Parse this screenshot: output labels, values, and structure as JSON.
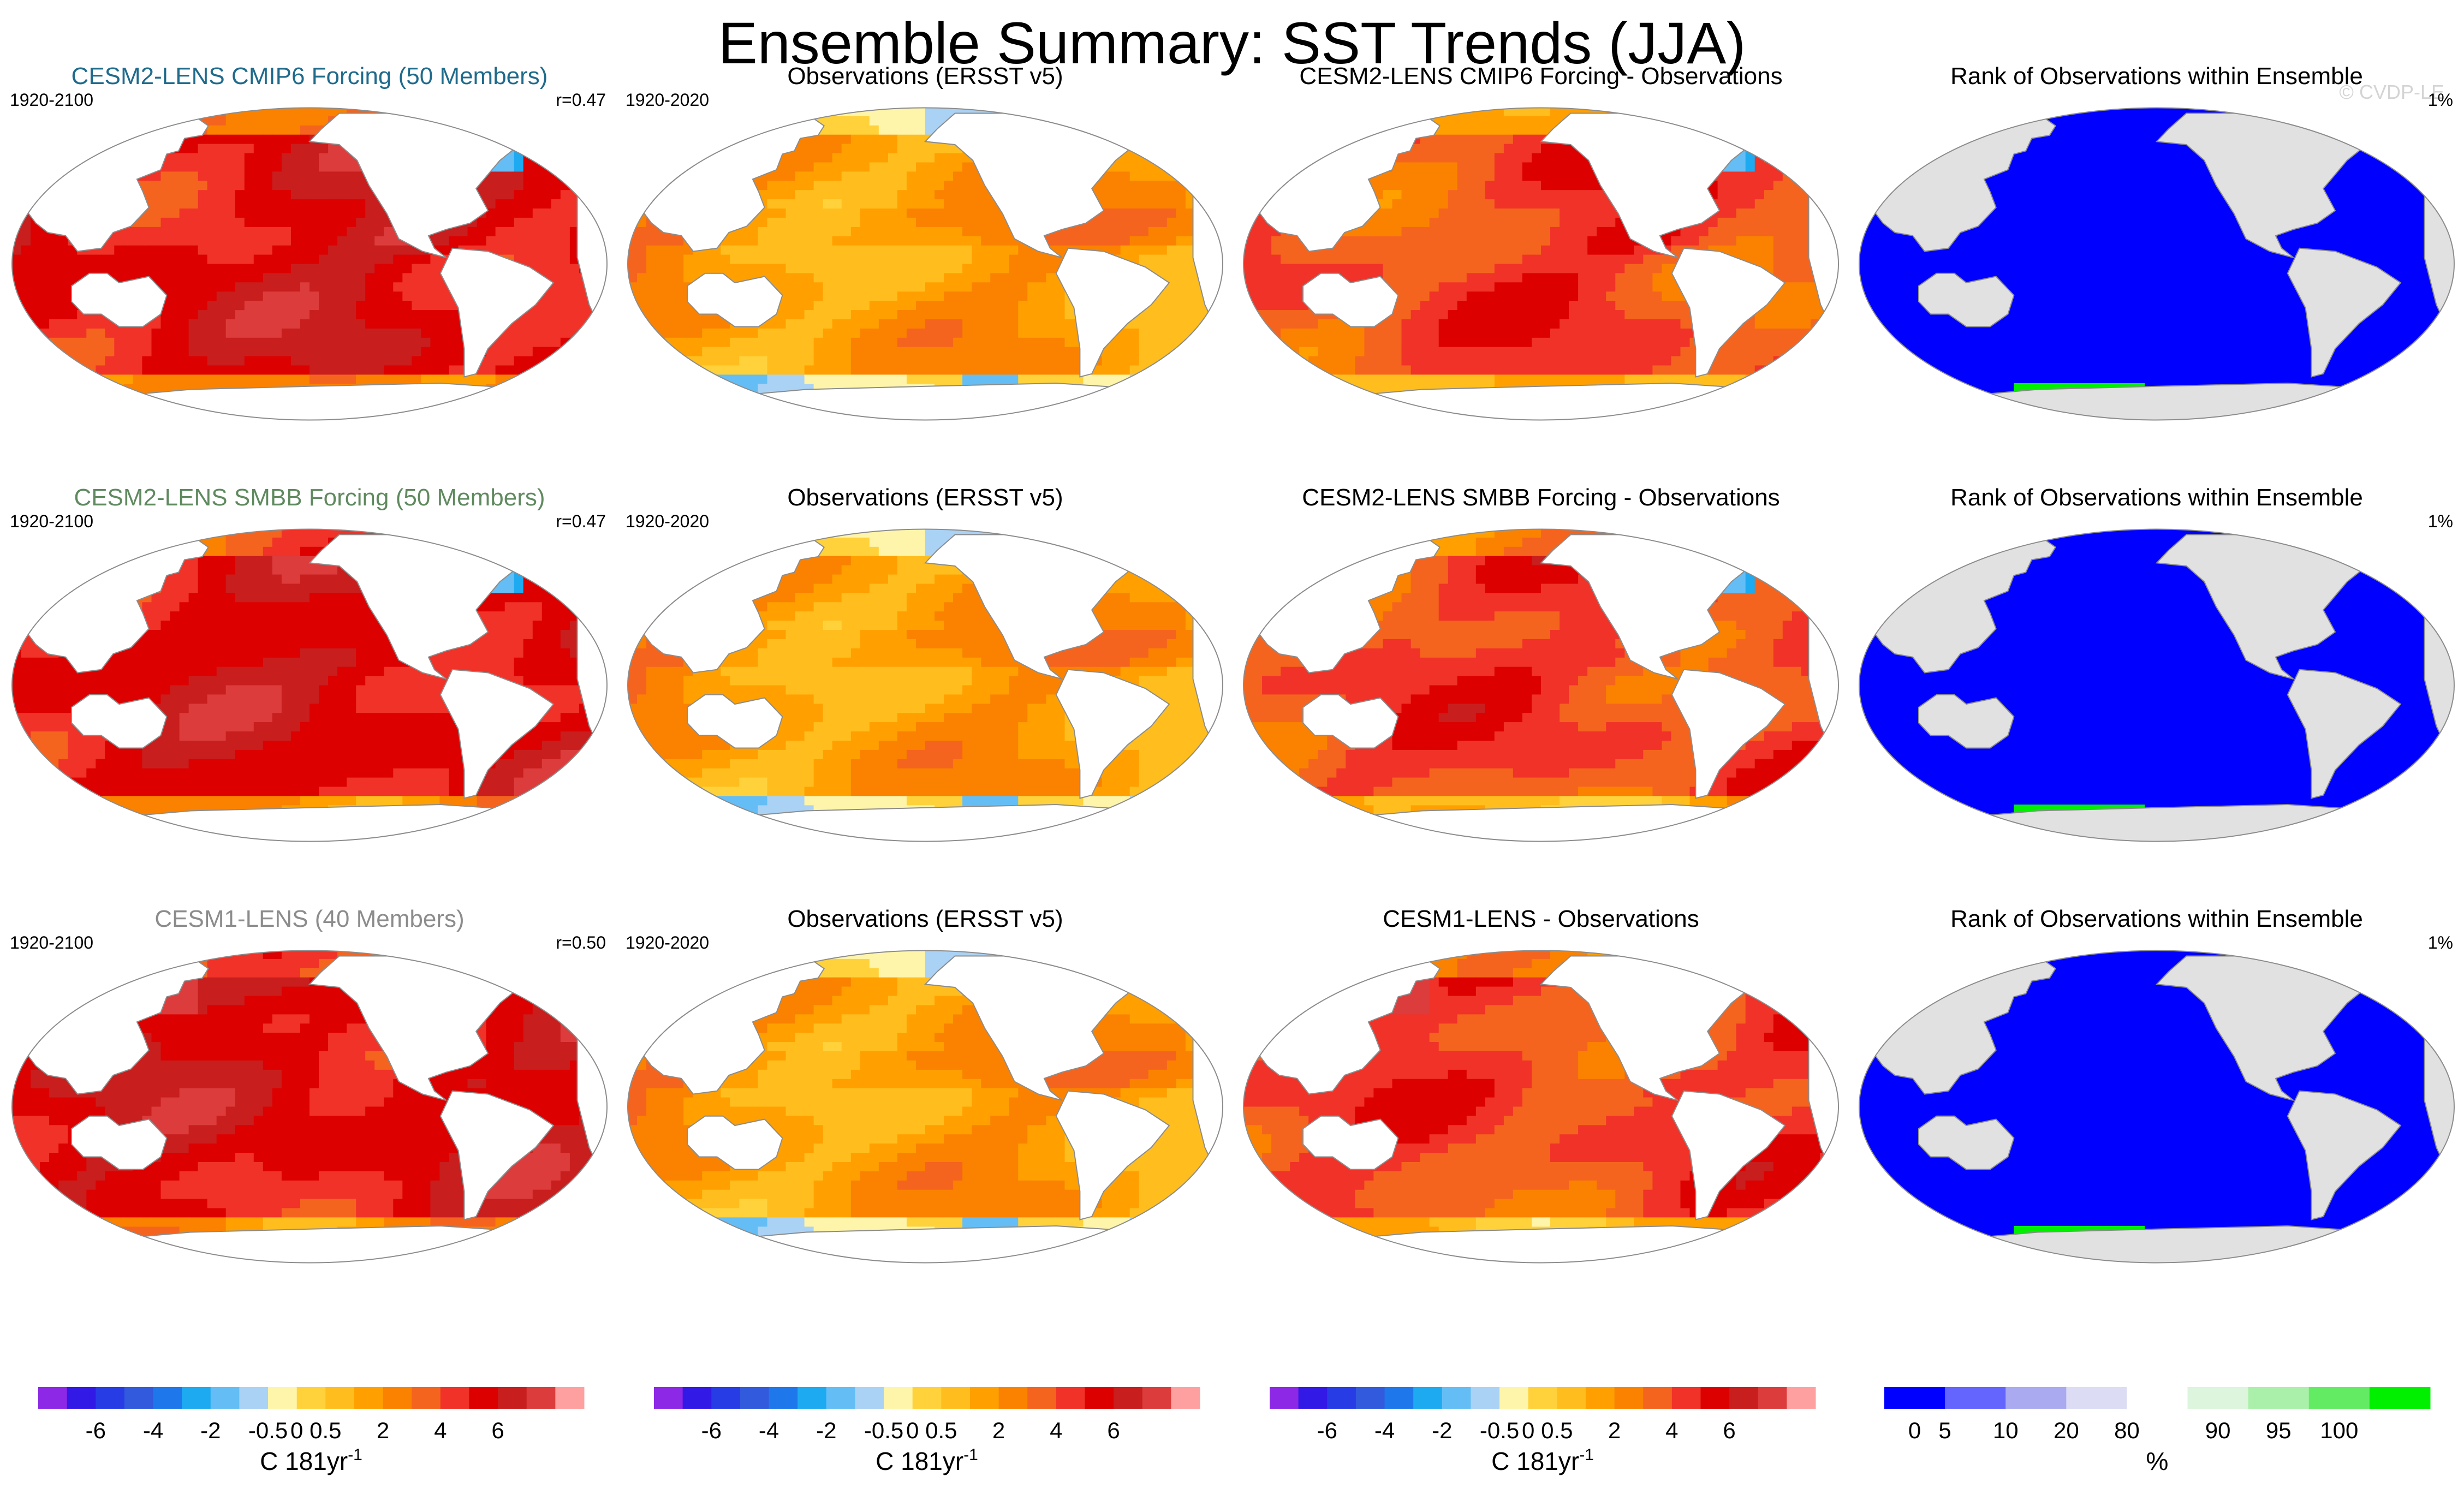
{
  "page": {
    "title": "Ensemble Summary: SST Trends (JJA)",
    "copyright": "© CVDP-LE"
  },
  "colors": {
    "background": "#ffffff",
    "land": "#ffffff",
    "coastline": "#8c8c8c",
    "rank_land": "#e1e1e1",
    "title_row1": "#1f6b8c",
    "title_row2": "#5f8a5f",
    "title_row3": "#8c8c8c",
    "copyright": "#d4d4d4"
  },
  "colorbars": {
    "trend": {
      "colors": [
        "#8c28e6",
        "#3219e6",
        "#283ce6",
        "#325adc",
        "#1e78eb",
        "#1eaaf0",
        "#64bef5",
        "#aad2f5",
        "#fff5aa",
        "#ffd23c",
        "#ffbe1e",
        "#ffa000",
        "#fa8200",
        "#f5641e",
        "#f03228",
        "#dc0000",
        "#c81e1e",
        "#dc3c3c",
        "#ffa0a0"
      ],
      "tick_labels": [
        "-6",
        "-4",
        "-2",
        "-0.5",
        "0",
        "0.5",
        "2",
        "4",
        "6"
      ],
      "tick_boundaries": [
        2,
        4,
        6,
        8,
        9,
        10,
        12,
        14,
        16
      ],
      "unit_base": "C 181yr",
      "unit_sup": "-1"
    },
    "rank": {
      "colors": [
        "#0000ff",
        "#6464ff",
        "#aaaaf0",
        "#dcdcf5",
        "#ffffff",
        "#dcf5dc",
        "#aaf0aa",
        "#64eb64",
        "#00f000"
      ],
      "tick_labels": [
        "0",
        "5",
        "10",
        "20",
        "80",
        "90",
        "95",
        "100"
      ],
      "tick_boundaries": [
        0.5,
        1,
        2,
        3,
        4,
        5.5,
        6.5,
        7.5
      ],
      "unit_base": "%"
    }
  },
  "chart_data": [
    {
      "type": "heatmap",
      "row": 0,
      "col": 0,
      "title": "CESM2-LENS CMIP6 Forcing (50 Members)",
      "left_label": "1920-2100",
      "right_label": "r=0.47",
      "field": "model",
      "variant": 1,
      "colorbar": "trend"
    },
    {
      "type": "heatmap",
      "row": 0,
      "col": 1,
      "title": "Observations (ERSST v5)",
      "left_label": "1920-2020",
      "right_label": "",
      "field": "obs",
      "variant": 0,
      "colorbar": "trend"
    },
    {
      "type": "heatmap",
      "row": 0,
      "col": 2,
      "title": "CESM2-LENS CMIP6 Forcing - Observations",
      "left_label": "",
      "right_label": "",
      "field": "diff",
      "variant": 1,
      "colorbar": "trend"
    },
    {
      "type": "heatmap",
      "row": 0,
      "col": 3,
      "title": "Rank of Observations within Ensemble",
      "left_label": "",
      "right_label": "1%",
      "field": "rank",
      "variant": 1,
      "colorbar": "rank"
    },
    {
      "type": "heatmap",
      "row": 1,
      "col": 0,
      "title": "CESM2-LENS SMBB Forcing (50 Members)",
      "left_label": "1920-2100",
      "right_label": "r=0.47",
      "field": "model",
      "variant": 2,
      "colorbar": "trend"
    },
    {
      "type": "heatmap",
      "row": 1,
      "col": 1,
      "title": "Observations (ERSST v5)",
      "left_label": "1920-2020",
      "right_label": "",
      "field": "obs",
      "variant": 0,
      "colorbar": "trend"
    },
    {
      "type": "heatmap",
      "row": 1,
      "col": 2,
      "title": "CESM2-LENS SMBB Forcing - Observations",
      "left_label": "",
      "right_label": "",
      "field": "diff",
      "variant": 2,
      "colorbar": "trend"
    },
    {
      "type": "heatmap",
      "row": 1,
      "col": 3,
      "title": "Rank of Observations within Ensemble",
      "left_label": "",
      "right_label": "1%",
      "field": "rank",
      "variant": 2,
      "colorbar": "rank"
    },
    {
      "type": "heatmap",
      "row": 2,
      "col": 0,
      "title": "CESM1-LENS (40 Members)",
      "left_label": "1920-2100",
      "right_label": "r=0.50",
      "field": "model",
      "variant": 3,
      "colorbar": "trend"
    },
    {
      "type": "heatmap",
      "row": 2,
      "col": 1,
      "title": "Observations (ERSST v5)",
      "left_label": "1920-2020",
      "right_label": "",
      "field": "obs",
      "variant": 0,
      "colorbar": "trend"
    },
    {
      "type": "heatmap",
      "row": 2,
      "col": 2,
      "title": "CESM1-LENS - Observations",
      "left_label": "",
      "right_label": "",
      "field": "diff",
      "variant": 3,
      "colorbar": "trend"
    },
    {
      "type": "heatmap",
      "row": 2,
      "col": 3,
      "title": "Rank of Observations within Ensemble",
      "left_label": "",
      "right_label": "1%",
      "field": "rank",
      "variant": 3,
      "colorbar": "rank"
    }
  ]
}
